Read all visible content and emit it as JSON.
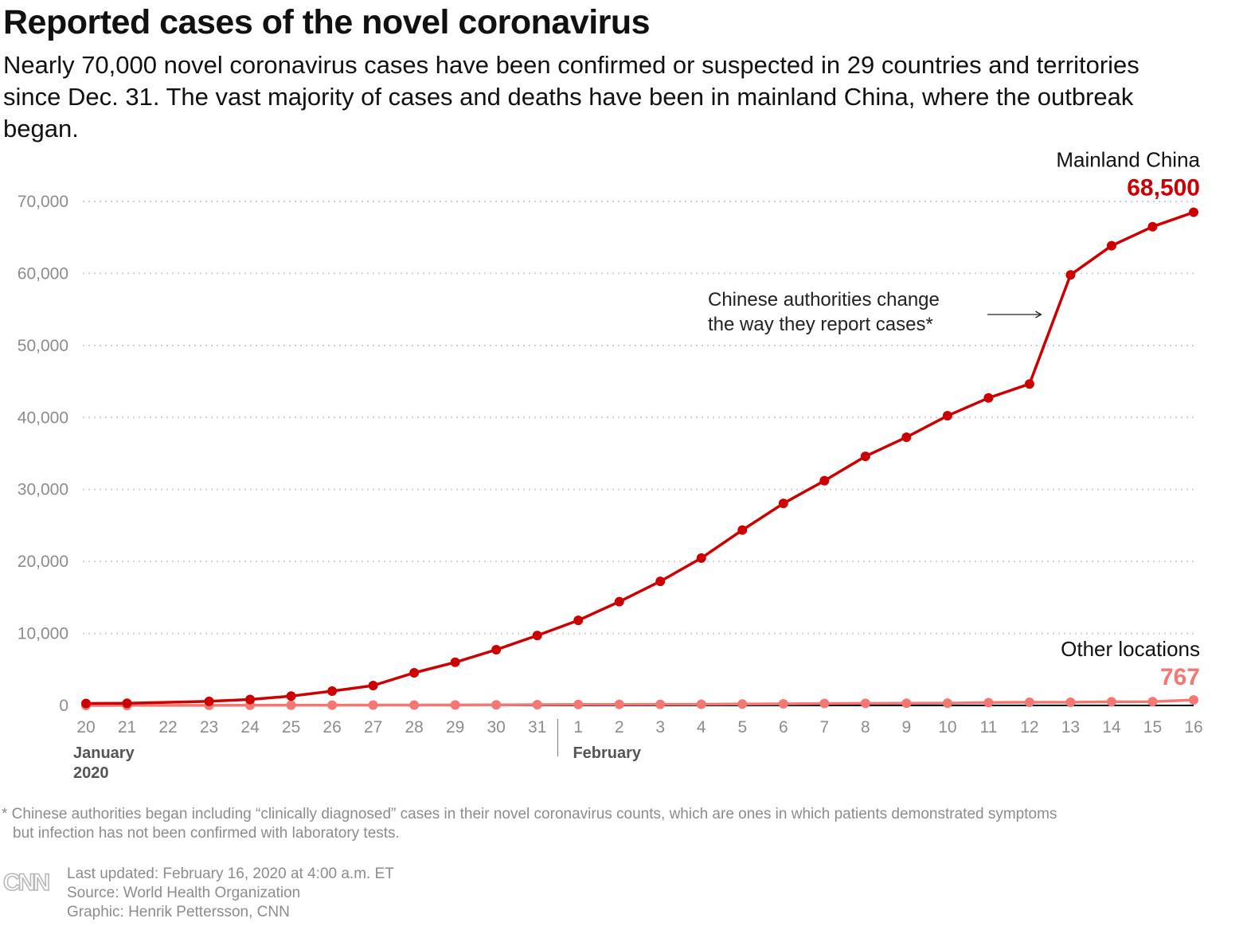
{
  "title": "Reported cases of the novel coronavirus",
  "subtitle": "Nearly 70,000 novel coronavirus cases have been confirmed or suspected in 29 countries and territories since Dec. 31. The vast majority of cases and deaths have been in mainland China, where the outbreak began.",
  "colors": {
    "china": "#cc0000",
    "other": "#f47772",
    "grid": "#cfcfcf",
    "axis_text": "#8c8c8c",
    "month_text": "#555555"
  },
  "chart_data": {
    "type": "line",
    "x": [
      "20",
      "21",
      "22",
      "23",
      "24",
      "25",
      "26",
      "27",
      "28",
      "29",
      "30",
      "31",
      "1",
      "2",
      "3",
      "4",
      "5",
      "6",
      "7",
      "8",
      "9",
      "10",
      "11",
      "12",
      "13",
      "14",
      "15",
      "16"
    ],
    "x_dates": [
      "2020-01-20",
      "2020-01-21",
      "2020-01-22",
      "2020-01-23",
      "2020-01-24",
      "2020-01-25",
      "2020-01-26",
      "2020-01-27",
      "2020-01-28",
      "2020-01-29",
      "2020-01-30",
      "2020-01-31",
      "2020-02-01",
      "2020-02-02",
      "2020-02-03",
      "2020-02-04",
      "2020-02-05",
      "2020-02-06",
      "2020-02-07",
      "2020-02-08",
      "2020-02-09",
      "2020-02-10",
      "2020-02-11",
      "2020-02-12",
      "2020-02-13",
      "2020-02-14",
      "2020-02-15",
      "2020-02-16"
    ],
    "month_labels": [
      {
        "at": "20",
        "lines": [
          "January",
          "2020"
        ]
      },
      {
        "at": "1",
        "lines": [
          "February"
        ]
      }
    ],
    "ylim": [
      0,
      70000
    ],
    "yticks": [
      0,
      10000,
      20000,
      30000,
      40000,
      50000,
      60000,
      70000
    ],
    "ytick_labels": [
      "0",
      "10,000",
      "20,000",
      "30,000",
      "40,000",
      "50,000",
      "60,000",
      "70,000"
    ],
    "grid": true,
    "series": [
      {
        "name": "Mainland China",
        "end_label": "68,500",
        "values": [
          278,
          309,
          null,
          571,
          830,
          1297,
          1985,
          2761,
          4537,
          5997,
          7736,
          9720,
          11821,
          14411,
          17238,
          20471,
          24363,
          28060,
          31211,
          34598,
          37251,
          40235,
          42708,
          44653,
          59804,
          63851,
          66492,
          68500
        ]
      },
      {
        "name": "Other locations",
        "end_label": "767",
        "values": [
          4,
          6,
          null,
          10,
          27,
          39,
          44,
          51,
          57,
          68,
          82,
          106,
          132,
          146,
          153,
          159,
          191,
          216,
          270,
          288,
          307,
          319,
          393,
          441,
          447,
          505,
          526,
          767
        ]
      }
    ],
    "annotation": {
      "lines": [
        "Chinese authorities change",
        "the way they report cases*"
      ],
      "points_to": "13"
    }
  },
  "footnote": {
    "line1": "* Chinese authorities began including “clinically diagnosed” cases in their novel coronavirus counts, which are ones in which patients demonstrated symptoms",
    "line2": "but infection has not been confirmed with laboratory tests."
  },
  "credits": {
    "updated": "Last updated: February 16, 2020 at 4:00 a.m. ET",
    "source": "Source: World Health Organization",
    "graphic": "Graphic: Henrik Pettersson, CNN"
  },
  "logo_text": "CNN"
}
